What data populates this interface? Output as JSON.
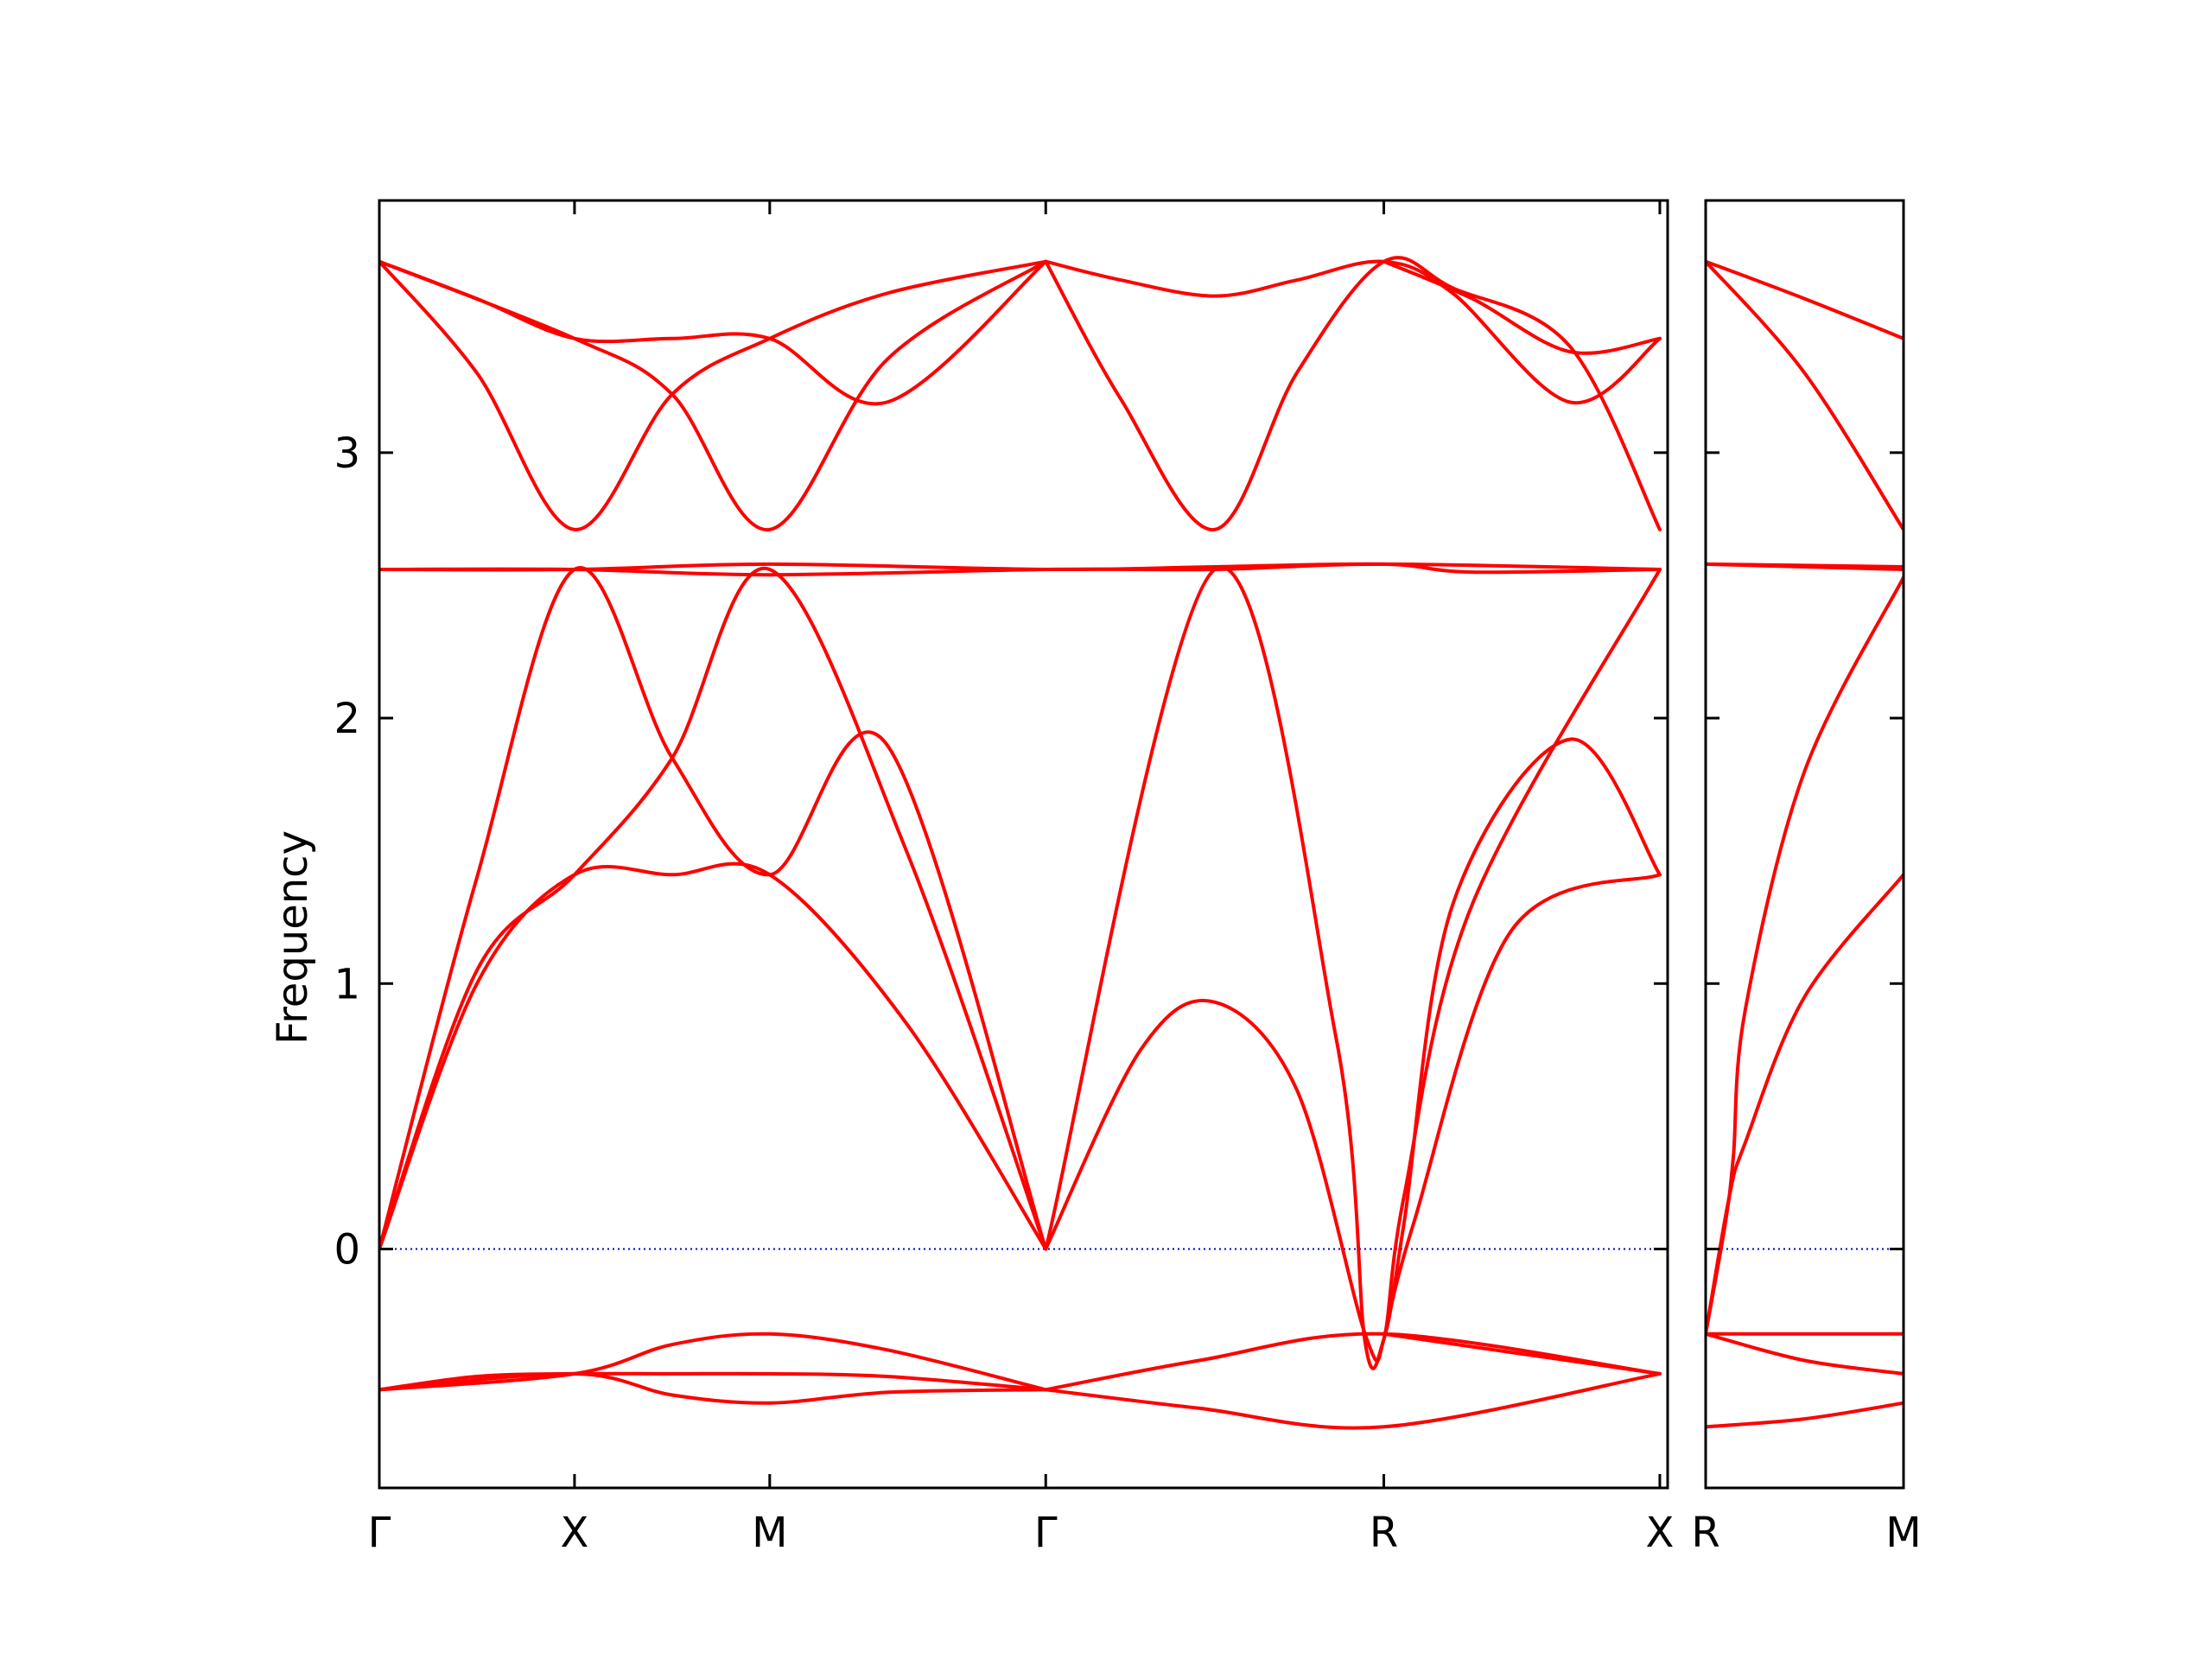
{
  "chart_data": {
    "type": "line",
    "ylabel": "Frequency",
    "ylim": [
      -0.9,
      3.95
    ],
    "yticks": [
      0,
      1,
      2,
      3
    ],
    "zero_line": true,
    "colors": {
      "band": "#ff0000",
      "zero_line": "#0000cc",
      "axes": "#000000"
    },
    "panels": [
      {
        "name": "panel-main",
        "xlabels": [
          "Γ",
          "X",
          "M",
          "Γ",
          "R",
          "X"
        ],
        "xlim": [
          0,
          6.6
        ],
        "xticks": [
          0,
          1,
          2,
          3.414,
          5.146,
          6.56
        ],
        "series": [
          {
            "name": "",
            "x": [
              0,
              0.5,
              1,
              1.5,
              2,
              2.6,
              3.414
            ],
            "y": [
              3.72,
              3.58,
              3.43,
              3.43,
              3.43,
              3.19,
              3.72
            ]
          },
          {
            "name": "",
            "x": [
              0,
              0.5,
              1,
              1.5,
              2,
              2.6,
              3.414
            ],
            "y": [
              3.72,
              3.3,
              2.71,
              3.22,
              3.43,
              3.6,
              3.72
            ]
          },
          {
            "name": "",
            "x": [
              0,
              1,
              1.5,
              2,
              2.6,
              3.414
            ],
            "y": [
              3.72,
              3.43,
              3.22,
              2.71,
              3.35,
              3.72
            ]
          },
          {
            "name": "",
            "x": [
              3.414,
              3.8,
              4.28,
              4.7,
              5.146,
              5.5,
              6.1,
              6.56
            ],
            "y": [
              3.72,
              3.65,
              3.59,
              3.65,
              3.72,
              3.6,
              3.19,
              3.43
            ]
          },
          {
            "name": "",
            "x": [
              3.414,
              3.8,
              4.28,
              4.7,
              5.146,
              5.5,
              6.1,
              6.56
            ],
            "y": [
              3.72,
              3.2,
              2.71,
              3.3,
              3.72,
              3.62,
              3.4,
              2.71
            ]
          },
          {
            "name": "",
            "x": [
              5.146,
              5.6,
              6.1,
              6.56
            ],
            "y": [
              3.72,
              3.58,
              3.38,
              3.43
            ]
          },
          {
            "name": "",
            "x": [
              0,
              1,
              2,
              3.414,
              4.28,
              5.146,
              5.6,
              6.56
            ],
            "y": [
              2.56,
              2.56,
              2.58,
              2.56,
              2.57,
              2.58,
              2.55,
              2.56
            ]
          },
          {
            "name": "",
            "x": [
              0,
              1,
              2,
              3.414,
              4.28,
              5.146,
              6.56
            ],
            "y": [
              2.56,
              2.56,
              2.54,
              2.56,
              2.56,
              2.58,
              2.56
            ]
          },
          {
            "name": "",
            "x": [
              0,
              0.5,
              1,
              1.5,
              2,
              2.6,
              3.414
            ],
            "y": [
              0,
              1.4,
              2.56,
              1.85,
              1.41,
              1.9,
              0
            ]
          },
          {
            "name": "",
            "x": [
              0,
              0.5,
              1,
              1.5,
              2,
              2.7,
              3.414
            ],
            "y": [
              0,
              1.05,
              1.41,
              1.85,
              2.56,
              1.5,
              0
            ]
          },
          {
            "name": "",
            "x": [
              0,
              0.5,
              1,
              1.5,
              2,
              2.7,
              3.414
            ],
            "y": [
              0,
              1.0,
              1.41,
              1.41,
              1.41,
              0.85,
              0
            ]
          },
          {
            "name": "",
            "x": [
              3.414,
              4.28,
              4.9,
              5.05,
              5.146,
              5.25,
              5.5,
              6.1,
              6.56
            ],
            "y": [
              0,
              2.56,
              0.8,
              -0.35,
              -0.34,
              0.1,
              1.3,
              1.92,
              1.41
            ]
          },
          {
            "name": "",
            "x": [
              3.414,
              3.9,
              4.28,
              4.7,
              5.05,
              5.146,
              5.25,
              5.6,
              6.56
            ],
            "y": [
              0,
              0.75,
              0.93,
              0.6,
              -0.32,
              -0.34,
              0.2,
              1.3,
              2.56
            ]
          },
          {
            "name": "",
            "x": [
              5.146,
              5.3,
              5.8,
              6.56
            ],
            "y": [
              -0.34,
              0.1,
              1.2,
              1.41
            ]
          },
          {
            "name": "",
            "x": [
              0,
              0.5,
              1,
              1.5,
              2,
              2.6,
              3.414
            ],
            "y": [
              -0.53,
              -0.48,
              -0.47,
              -0.47,
              -0.47,
              -0.48,
              -0.53
            ]
          },
          {
            "name": "",
            "x": [
              0,
              1,
              1.5,
              2,
              2.6,
              3.414
            ],
            "y": [
              -0.53,
              -0.47,
              -0.36,
              -0.32,
              -0.38,
              -0.53
            ]
          },
          {
            "name": "",
            "x": [
              0,
              1,
              1.5,
              2,
              2.6,
              3.414
            ],
            "y": [
              -0.53,
              -0.47,
              -0.55,
              -0.58,
              -0.54,
              -0.53
            ]
          },
          {
            "name": "",
            "x": [
              3.414,
              4.2,
              5.146,
              6.56
            ],
            "y": [
              -0.53,
              -0.6,
              -0.67,
              -0.47
            ]
          },
          {
            "name": "",
            "x": [
              3.414,
              4.2,
              5.146,
              6.56
            ],
            "y": [
              -0.53,
              -0.42,
              -0.32,
              -0.47
            ]
          },
          {
            "name": "",
            "x": [
              5.146,
              6.56
            ],
            "y": [
              -0.32,
              -0.47
            ]
          }
        ]
      },
      {
        "name": "panel-right",
        "xlabels": [
          "R",
          "M"
        ],
        "xlim": [
          0,
          1
        ],
        "xticks": [
          0,
          1
        ],
        "series": [
          {
            "name": "",
            "x": [
              0,
              0.5,
              1
            ],
            "y": [
              3.72,
              3.58,
              3.43
            ]
          },
          {
            "name": "",
            "x": [
              0,
              0.5,
              1
            ],
            "y": [
              3.72,
              3.3,
              2.71
            ]
          },
          {
            "name": "",
            "x": [
              0,
              1
            ],
            "y": [
              2.58,
              2.56
            ]
          },
          {
            "name": "",
            "x": [
              0,
              1
            ],
            "y": [
              2.58,
              2.57
            ]
          },
          {
            "name": "",
            "x": [
              0,
              0.1,
              0.14,
              0.2,
              0.5,
              1
            ],
            "y": [
              -0.32,
              0.1,
              0.35,
              0.9,
              1.8,
              2.53
            ]
          },
          {
            "name": "",
            "x": [
              0,
              0.12,
              0.2,
              0.5,
              1
            ],
            "y": [
              -0.32,
              0.2,
              0.4,
              0.95,
              1.41
            ]
          },
          {
            "name": "",
            "x": [
              0,
              1
            ],
            "y": [
              -0.32,
              -0.32
            ]
          },
          {
            "name": "",
            "x": [
              0,
              0.5,
              1
            ],
            "y": [
              -0.32,
              -0.42,
              -0.47
            ]
          },
          {
            "name": "",
            "x": [
              0,
              0.5,
              1
            ],
            "y": [
              -0.67,
              -0.64,
              -0.58
            ]
          }
        ]
      }
    ]
  }
}
